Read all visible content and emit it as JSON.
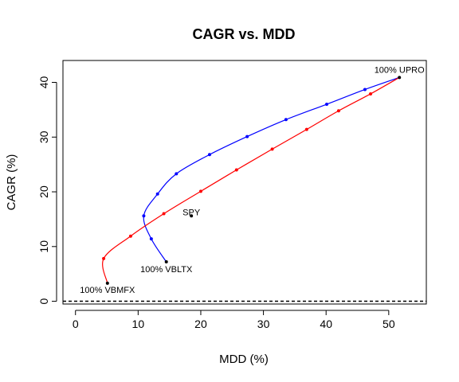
{
  "chart_data": {
    "type": "line",
    "title": "CAGR vs. MDD",
    "xlabel": "MDD (%)",
    "ylabel": "CAGR (%)",
    "xlim": [
      -2,
      56
    ],
    "ylim": [
      -0.5,
      44
    ],
    "xticks": [
      0,
      10,
      20,
      30,
      40,
      50
    ],
    "yticks": [
      0,
      10,
      20,
      30,
      40
    ],
    "grid": false,
    "reference_line": {
      "y": 0,
      "style": "dashed"
    },
    "series": [
      {
        "color": "#0000ff",
        "points": [
          [
            14.5,
            7.2
          ],
          [
            12.1,
            11.4
          ],
          [
            10.9,
            15.6
          ],
          [
            13.1,
            19.6
          ],
          [
            16.1,
            23.3
          ],
          [
            21.4,
            26.8
          ],
          [
            27.4,
            30.1
          ],
          [
            33.6,
            33.2
          ],
          [
            40.1,
            36.0
          ],
          [
            46.2,
            38.7
          ],
          [
            51.7,
            40.9
          ]
        ]
      },
      {
        "color": "#ff0000",
        "points": [
          [
            5.1,
            3.3
          ],
          [
            4.5,
            7.8
          ],
          [
            8.8,
            11.9
          ],
          [
            14.1,
            16.0
          ],
          [
            20.0,
            20.1
          ],
          [
            25.7,
            24.0
          ],
          [
            31.4,
            27.8
          ],
          [
            36.9,
            31.4
          ],
          [
            42.0,
            34.8
          ],
          [
            47.1,
            37.9
          ],
          [
            51.7,
            40.9
          ]
        ]
      }
    ],
    "annotations": [
      {
        "label": "100% UPRO",
        "x": 51.7,
        "y": 40.9,
        "color": "#000000"
      },
      {
        "label": "100% VBLTX",
        "x": 14.5,
        "y": 7.2,
        "color": "#000000"
      },
      {
        "label": "100% VBMFX",
        "x": 5.1,
        "y": 3.3,
        "color": "#000000"
      },
      {
        "label": "SPY",
        "x": 18.5,
        "y": 15.6,
        "color": "#000000"
      }
    ]
  }
}
